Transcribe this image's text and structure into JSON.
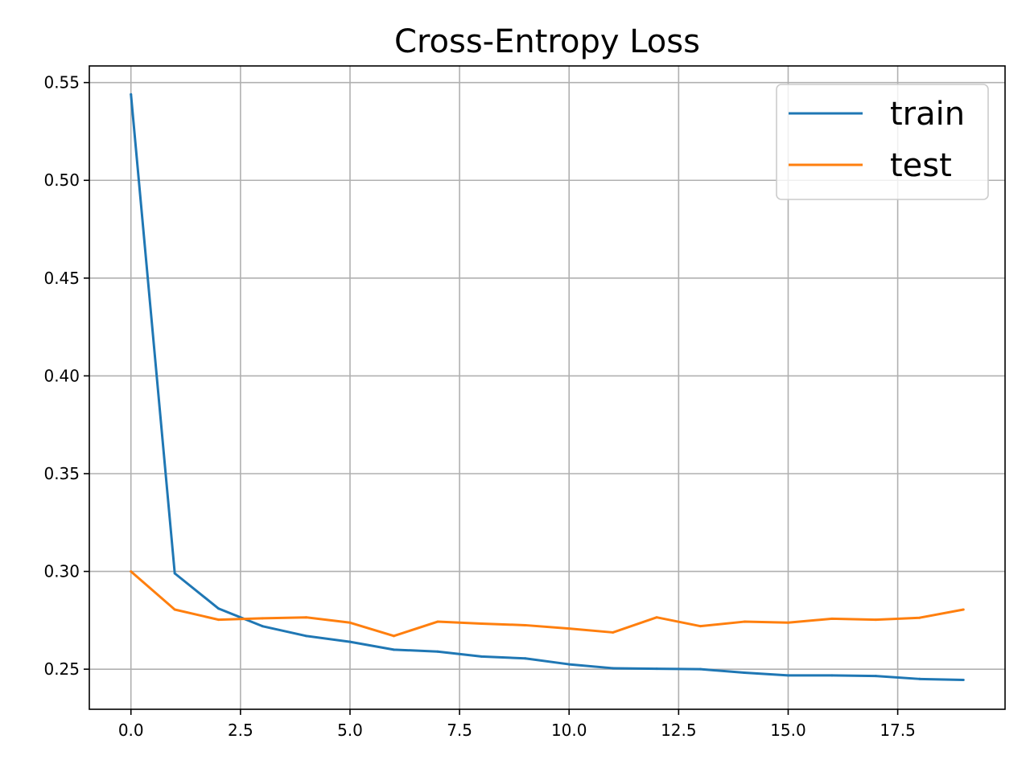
{
  "chart_data": {
    "type": "line",
    "title": "Cross-Entropy Loss",
    "xlabel": "",
    "ylabel": "",
    "xlim": [
      -0.95,
      19.95
    ],
    "ylim": [
      0.2295,
      0.5585
    ],
    "xticks": [
      0.0,
      2.5,
      5.0,
      7.5,
      10.0,
      12.5,
      15.0,
      17.5
    ],
    "xtick_labels": [
      "0.0",
      "2.5",
      "5.0",
      "7.5",
      "10.0",
      "12.5",
      "15.0",
      "17.5"
    ],
    "yticks": [
      0.25,
      0.3,
      0.35,
      0.4,
      0.45,
      0.5,
      0.55
    ],
    "ytick_labels": [
      "0.25",
      "0.30",
      "0.35",
      "0.40",
      "0.45",
      "0.50",
      "0.55"
    ],
    "grid": true,
    "legend_position": "top-right",
    "x": [
      0,
      1,
      2,
      3,
      4,
      5,
      6,
      7,
      8,
      9,
      10,
      11,
      12,
      13,
      14,
      15,
      16,
      17,
      18,
      19
    ],
    "series": [
      {
        "name": "train",
        "color": "#1f77b4",
        "values": [
          0.544,
          0.299,
          0.281,
          0.272,
          0.267,
          0.264,
          0.26,
          0.259,
          0.2565,
          0.2555,
          0.2525,
          0.2505,
          0.2502,
          0.25,
          0.2482,
          0.2468,
          0.2468,
          0.2465,
          0.245,
          0.2445
        ]
      },
      {
        "name": "test",
        "color": "#ff7f0e",
        "values": [
          0.3,
          0.2805,
          0.2753,
          0.276,
          0.2765,
          0.2738,
          0.267,
          0.2743,
          0.2733,
          0.2725,
          0.2708,
          0.2688,
          0.2765,
          0.272,
          0.2743,
          0.2738,
          0.2758,
          0.2753,
          0.2763,
          0.2805
        ]
      }
    ]
  }
}
